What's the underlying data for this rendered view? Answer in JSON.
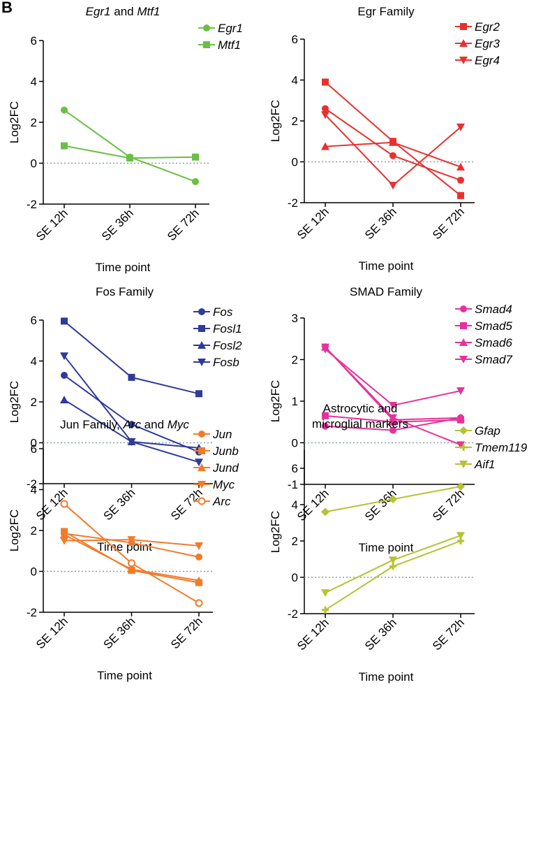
{
  "panel_letter": "B",
  "chart_data": [
    {
      "type": "line",
      "title": [
        "Egr1",
        " and ",
        "Mtf1"
      ],
      "title_italic": [
        true,
        false,
        true
      ],
      "ylabel": "Log2FC",
      "xlabel": "Time point",
      "categories": [
        "SE 12h",
        "SE 36h",
        "SE 72h"
      ],
      "ylim": [
        -2,
        6
      ],
      "yticks": [
        -2,
        0,
        2,
        4,
        6
      ],
      "baseline": 0,
      "color": "#6abf45",
      "series": [
        {
          "name": "Egr1",
          "marker": "circle",
          "values": [
            2.6,
            0.3,
            -0.9
          ]
        },
        {
          "name": "Mtf1",
          "marker": "square",
          "values": [
            0.85,
            0.25,
            0.3
          ]
        }
      ]
    },
    {
      "type": "line",
      "title": [
        "Egr Family"
      ],
      "title_italic": [
        false
      ],
      "ylabel": "Log2FC",
      "xlabel": "Time point",
      "categories": [
        "SE 12h",
        "SE 36h",
        "SE 72h"
      ],
      "ylim": [
        -2,
        6
      ],
      "yticks": [
        -2,
        0,
        2,
        4,
        6
      ],
      "baseline": 0,
      "color": "#e8312f",
      "series": [
        {
          "name": "Egr2",
          "marker": "square",
          "values": [
            3.9,
            1.0,
            -1.65
          ]
        },
        {
          "name": "Egr3",
          "marker": "triangle-up",
          "values": [
            0.75,
            0.95,
            -0.25
          ]
        },
        {
          "name": "Egr4",
          "marker": "triangle-down",
          "values": [
            2.3,
            -1.15,
            1.7
          ]
        },
        {
          "name": "",
          "marker": "circle",
          "values": [
            2.6,
            0.3,
            -0.9
          ]
        }
      ]
    },
    {
      "type": "line",
      "title": [
        "Fos Family"
      ],
      "title_italic": [
        false
      ],
      "ylabel": "Log2FC",
      "xlabel": "Time point",
      "categories": [
        "SE 12h",
        "SE 36h",
        "SE 72h"
      ],
      "ylim": [
        -2,
        6
      ],
      "yticks": [
        -2,
        0,
        2,
        4,
        6
      ],
      "baseline": 0,
      "color": "#2e3b9a",
      "series": [
        {
          "name": "Fos",
          "marker": "circle",
          "values": [
            3.3,
            0.9,
            -0.45
          ]
        },
        {
          "name": "Fosl1",
          "marker": "square",
          "values": [
            5.95,
            3.2,
            2.4
          ]
        },
        {
          "name": "Fosl2",
          "marker": "triangle-up",
          "values": [
            2.1,
            0.05,
            -0.25
          ]
        },
        {
          "name": "Fosb",
          "marker": "triangle-down",
          "values": [
            4.25,
            0.05,
            -0.95
          ]
        }
      ]
    },
    {
      "type": "line",
      "title": [
        "SMAD Family"
      ],
      "title_italic": [
        false
      ],
      "ylabel": "Log2FC",
      "xlabel": "Time point",
      "categories": [
        "SE 12h",
        "SE 36h",
        "SE 72h"
      ],
      "ylim": [
        -1,
        3
      ],
      "yticks": [
        -1,
        0,
        1,
        2,
        3
      ],
      "baseline": 0,
      "color": "#e6329a",
      "series": [
        {
          "name": "Smad4",
          "marker": "circle",
          "values": [
            0.4,
            0.3,
            0.6
          ]
        },
        {
          "name": "Smad5",
          "marker": "square",
          "values": [
            0.65,
            0.5,
            0.55
          ]
        },
        {
          "name": "Smad6",
          "marker": "triangle-up",
          "values": [
            2.3,
            0.55,
            0.6
          ]
        },
        {
          "name": "Smad7",
          "marker": "triangle-down",
          "values": [
            2.25,
            0.9,
            1.25
          ]
        },
        {
          "name": "",
          "marker": "triangle-down",
          "values": [
            2.3,
            0.6,
            -0.05
          ]
        }
      ]
    },
    {
      "type": "line",
      "title": [
        "Jun Family, ",
        "Arc",
        " and ",
        "Myc"
      ],
      "title_italic": [
        false,
        true,
        false,
        true
      ],
      "ylabel": "Log2FC",
      "xlabel": "Time point",
      "categories": [
        "SE 12h",
        "SE 36h",
        "SE 72h"
      ],
      "ylim": [
        -2,
        6
      ],
      "yticks": [
        -2,
        0,
        2,
        4,
        6
      ],
      "baseline": 0,
      "color": "#f27b2b",
      "series": [
        {
          "name": "Jun",
          "marker": "circle",
          "values": [
            1.85,
            1.4,
            0.7
          ]
        },
        {
          "name": "Junb",
          "marker": "square",
          "values": [
            1.95,
            0.05,
            -0.55
          ]
        },
        {
          "name": "Jund",
          "marker": "triangle-up",
          "values": [
            1.8,
            0.1,
            -0.45
          ]
        },
        {
          "name": "Myc",
          "marker": "triangle-down",
          "values": [
            1.5,
            1.55,
            1.25
          ]
        },
        {
          "name": "Arc",
          "marker": "open-circle",
          "values": [
            3.3,
            0.4,
            -1.55
          ]
        }
      ]
    },
    {
      "type": "line",
      "title": [
        "Astrocytic and",
        "microglial markers"
      ],
      "title_italic": [
        false,
        false
      ],
      "title_multiline": true,
      "ylabel": "Log2FC",
      "xlabel": "Time point",
      "categories": [
        "SE 12h",
        "SE 36h",
        "SE 72h"
      ],
      "ylim": [
        -2,
        7
      ],
      "yticks": [
        -2,
        0,
        2,
        4,
        6
      ],
      "baseline": 0,
      "color": "#b5c232",
      "series": [
        {
          "name": "Gfap",
          "marker": "diamond",
          "values": [
            3.6,
            4.3,
            5.0
          ]
        },
        {
          "name": "Tmem119",
          "marker": "cross",
          "values": [
            -1.8,
            0.6,
            2.0
          ]
        },
        {
          "name": "Aif1",
          "marker": "triangle-down",
          "values": [
            -0.85,
            0.95,
            2.3
          ]
        }
      ]
    }
  ]
}
